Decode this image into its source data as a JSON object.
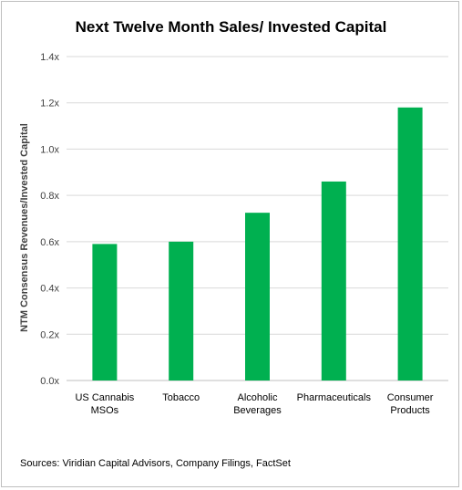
{
  "chart_data": {
    "type": "bar",
    "title": "Next Twelve Month Sales/ Invested Capital",
    "ylabel": "NTM Consensus Revenues/Invested Capital",
    "xlabel": "",
    "categories": [
      [
        "US Cannabis",
        "MSOs"
      ],
      [
        "Tobacco"
      ],
      [
        "Alcoholic",
        "Beverages"
      ],
      [
        "Pharmaceuticals"
      ],
      [
        "Consumer",
        "Products"
      ]
    ],
    "values": [
      0.59,
      0.6,
      0.725,
      0.86,
      1.18
    ],
    "ylim": [
      0,
      1.4
    ],
    "yticks": [
      "0.0x",
      "0.2x",
      "0.4x",
      "0.6x",
      "0.8x",
      "1.0x",
      "1.2x",
      "1.4x"
    ],
    "grid": true,
    "bar_color": "#00b050",
    "grid_color": "#d9d9d9"
  },
  "footer": {
    "source": "Sources: Viridian Capital Advisors, Company Filings, FactSet"
  }
}
